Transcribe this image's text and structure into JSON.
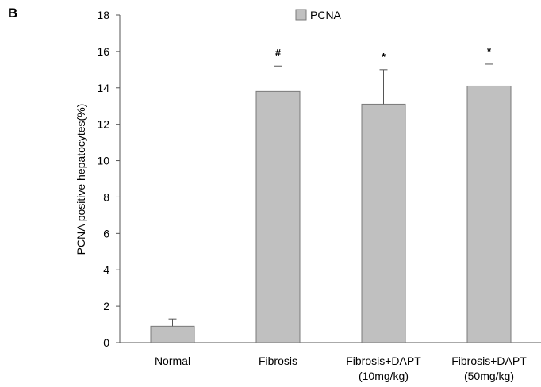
{
  "panel_label": "B",
  "chart_data": {
    "type": "bar",
    "title": "",
    "xlabel": "",
    "ylabel": "PCNA positive hepatocytes(%)",
    "ylim": [
      0,
      18
    ],
    "yticks": [
      "0",
      "2",
      "4",
      "6",
      "8",
      "10",
      "12",
      "14",
      "16",
      "18"
    ],
    "categories": [
      [
        "Normal"
      ],
      [
        "Fibrosis"
      ],
      [
        "Fibrosis+DAPT",
        "(10mg/kg)"
      ],
      [
        "Fibrosis+DAPT",
        "(50mg/kg)"
      ]
    ],
    "series": [
      {
        "name": "PCNA",
        "values": [
          0.9,
          13.8,
          13.1,
          14.1
        ],
        "errors": [
          0.4,
          1.4,
          1.9,
          1.2
        ],
        "annotations": [
          "",
          "#",
          "*",
          "*"
        ]
      }
    ],
    "legend_position": "top-center",
    "grid": false,
    "colors": {
      "bar": "#c0c0c0",
      "bar_edge": "#7a7a7a",
      "axis": "#555555"
    }
  }
}
